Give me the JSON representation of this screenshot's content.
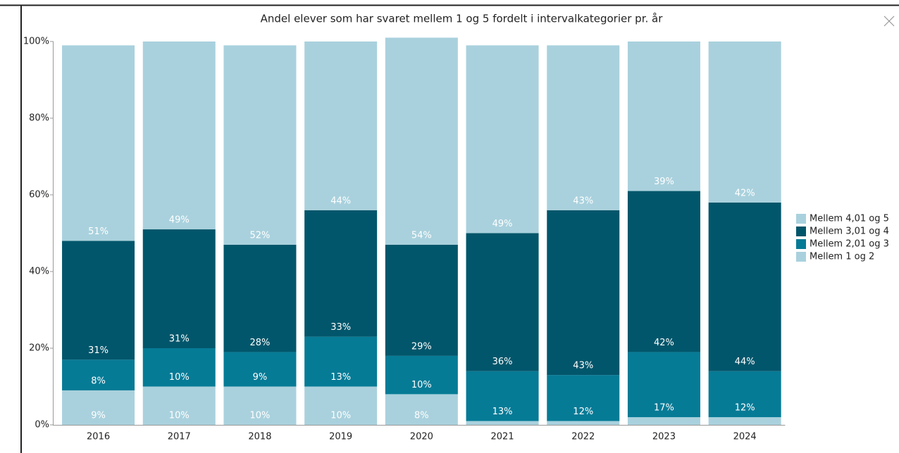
{
  "chart_data": {
    "type": "stacked_bar",
    "title": "Andel elever som har svaret mellem 1 og 5 fordelt i intervalkategorier pr. år",
    "categories": [
      "2016",
      "2017",
      "2018",
      "2019",
      "2020",
      "2021",
      "2022",
      "2023",
      "2024"
    ],
    "series": [
      {
        "name": "Mellem 1 og 2",
        "color": "#a9d1dd",
        "values": [
          9,
          10,
          10,
          10,
          8,
          1,
          1,
          2,
          2
        ],
        "value_labels": [
          "9%",
          "10%",
          "10%",
          "10%",
          "8%",
          null,
          null,
          null,
          null
        ]
      },
      {
        "name": "Mellem 2,01 og 3",
        "color": "#067b96",
        "values": [
          8,
          10,
          9,
          13,
          10,
          13,
          12,
          17,
          12
        ],
        "value_labels": [
          "8%",
          "10%",
          "9%",
          "13%",
          "10%",
          "13%",
          "12%",
          "17%",
          "12%"
        ]
      },
      {
        "name": "Mellem 3,01 og 4",
        "color": "#02566b",
        "values": [
          31,
          31,
          28,
          33,
          29,
          36,
          43,
          42,
          44
        ],
        "value_labels": [
          "31%",
          "31%",
          "28%",
          "33%",
          "29%",
          "36%",
          "43%",
          "42%",
          "44%"
        ]
      },
      {
        "name": "Mellem 4,01 og 5",
        "color": "#a9d1dd",
        "values": [
          51,
          49,
          52,
          44,
          54,
          49,
          43,
          39,
          42
        ],
        "value_labels": [
          "51%",
          "49%",
          "52%",
          "44%",
          "54%",
          "49%",
          "43%",
          "39%",
          "42%"
        ]
      }
    ],
    "ylim": [
      0,
      100
    ],
    "yticks": [
      {
        "value": 0,
        "label": "0%"
      },
      {
        "value": 20,
        "label": "20%"
      },
      {
        "value": 40,
        "label": "40%"
      },
      {
        "value": 60,
        "label": "60%"
      },
      {
        "value": 80,
        "label": "80%"
      },
      {
        "value": 100,
        "label": "100%"
      }
    ],
    "legend": "right"
  }
}
